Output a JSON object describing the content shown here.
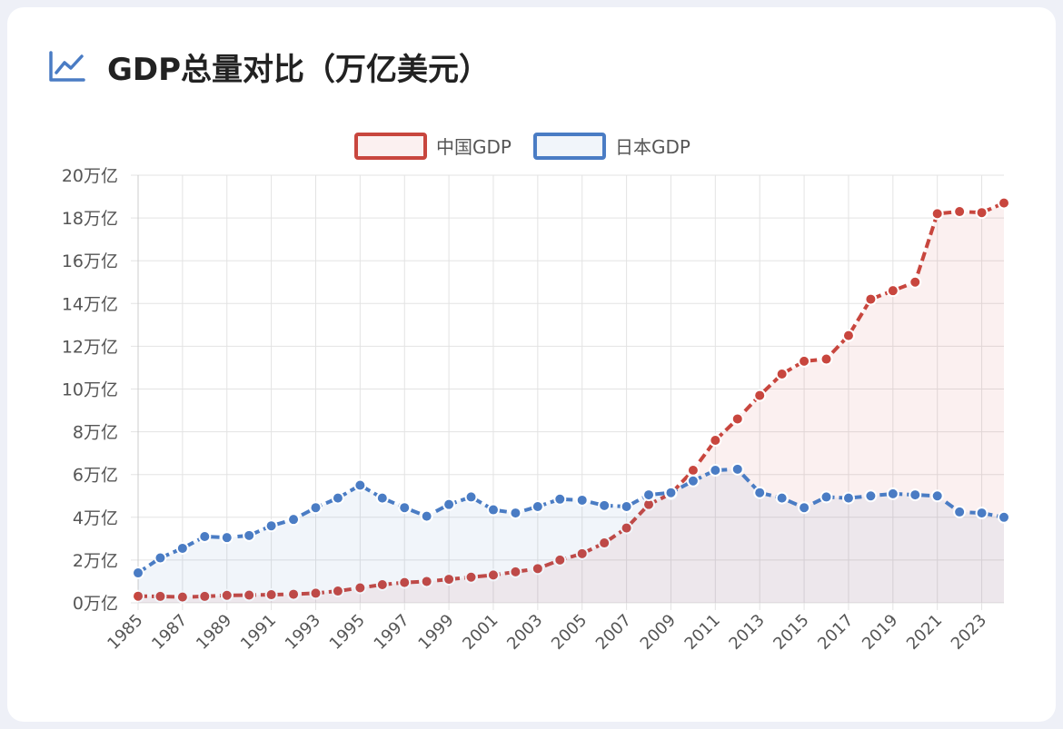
{
  "chart_data": {
    "type": "line",
    "title": "GDP总量对比（万亿美元）",
    "legend": "top",
    "fill": true,
    "grid": true,
    "x": [
      1985,
      1986,
      1987,
      1988,
      1989,
      1990,
      1991,
      1992,
      1993,
      1994,
      1995,
      1996,
      1997,
      1998,
      1999,
      2000,
      2001,
      2002,
      2003,
      2004,
      2005,
      2006,
      2007,
      2008,
      2009,
      2010,
      2011,
      2012,
      2013,
      2014,
      2015,
      2016,
      2017,
      2018,
      2019,
      2020,
      2021,
      2022,
      2023,
      2024
    ],
    "xlim": [
      1985,
      2024
    ],
    "xticks": [
      1985,
      1987,
      1989,
      1991,
      1993,
      1995,
      1997,
      1999,
      2001,
      2003,
      2005,
      2007,
      2009,
      2011,
      2013,
      2015,
      2017,
      2019,
      2021,
      2023
    ],
    "ylim": [
      0,
      20
    ],
    "yticks": [
      {
        "value": 0,
        "label": "0万亿"
      },
      {
        "value": 2,
        "label": "2万亿"
      },
      {
        "value": 4,
        "label": "4万亿"
      },
      {
        "value": 6,
        "label": "6万亿"
      },
      {
        "value": 8,
        "label": "8万亿"
      },
      {
        "value": 10,
        "label": "10万亿"
      },
      {
        "value": 12,
        "label": "12万亿"
      },
      {
        "value": 14,
        "label": "14万亿"
      },
      {
        "value": 16,
        "label": "16万亿"
      },
      {
        "value": 18,
        "label": "18万亿"
      },
      {
        "value": 20,
        "label": "20万亿"
      }
    ],
    "series": [
      {
        "name": "中国GDP",
        "color": "#c8463e",
        "values": [
          0.31,
          0.3,
          0.27,
          0.3,
          0.35,
          0.36,
          0.38,
          0.4,
          0.45,
          0.55,
          0.7,
          0.85,
          0.95,
          1.0,
          1.1,
          1.2,
          1.3,
          1.45,
          1.6,
          2.0,
          2.3,
          2.8,
          3.5,
          4.6,
          5.1,
          6.2,
          7.6,
          8.6,
          9.7,
          10.7,
          11.3,
          11.4,
          12.5,
          14.2,
          14.6,
          15.0,
          18.2,
          18.3,
          18.25,
          18.7
        ]
      },
      {
        "name": "日本GDP",
        "color": "#4a7cc4",
        "values": [
          1.4,
          2.1,
          2.55,
          3.1,
          3.05,
          3.15,
          3.6,
          3.9,
          4.45,
          4.9,
          5.5,
          4.9,
          4.45,
          4.05,
          4.6,
          4.95,
          4.35,
          4.2,
          4.5,
          4.85,
          4.8,
          4.55,
          4.5,
          5.05,
          5.15,
          5.7,
          6.2,
          6.25,
          5.15,
          4.9,
          4.45,
          4.95,
          4.9,
          5.0,
          5.1,
          5.05,
          5.0,
          4.25,
          4.2,
          4.0
        ]
      }
    ]
  }
}
